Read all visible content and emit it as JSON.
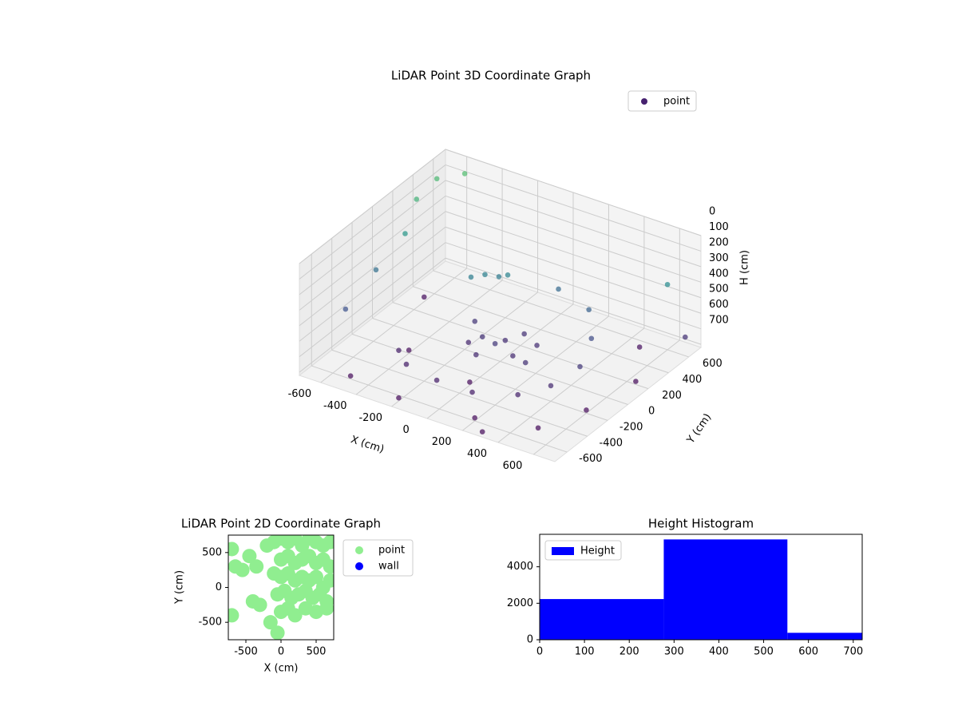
{
  "chart_data": [
    {
      "type": "scatter3d",
      "title": "LiDAR Point 3D Coordinate Graph",
      "xlabel": "X (cm)",
      "ylabel": "Y (cm)",
      "zlabel": "H (cm)",
      "xlim": [
        -720,
        720
      ],
      "ylim": [
        -720,
        720
      ],
      "zlim": [
        0,
        720
      ],
      "zinverted": true,
      "cmap": "viridis",
      "xticks": [
        -600,
        -400,
        -200,
        0,
        200,
        400,
        600
      ],
      "yticks": [
        -600,
        -400,
        -200,
        0,
        200,
        400,
        600
      ],
      "zticks": [
        0,
        100,
        200,
        300,
        400,
        500,
        600,
        700
      ],
      "series": [
        {
          "name": "point",
          "color": "#46216f",
          "x": [
            -100,
            0,
            100,
            -200,
            50,
            150,
            -50,
            200,
            -150,
            0,
            -250,
            -200,
            -150,
            -100,
            -400,
            -300,
            -100,
            100,
            300,
            400,
            450,
            400,
            300,
            100,
            -500,
            -200,
            200,
            500,
            600,
            650,
            500,
            -600,
            -400,
            0,
            300,
            700,
            -700,
            -700,
            -600,
            -650,
            -700,
            -700,
            600
          ],
          "y": [
            0,
            50,
            -50,
            100,
            150,
            100,
            -150,
            -100,
            -50,
            -50,
            150,
            200,
            250,
            250,
            -300,
            -400,
            -450,
            -450,
            -350,
            -200,
            0,
            200,
            350,
            400,
            -600,
            -650,
            -600,
            -500,
            -200,
            200,
            500,
            300,
            -200,
            -300,
            -700,
            600,
            400,
            600,
            700,
            200,
            0,
            -300,
            600
          ],
          "z": [
            600,
            610,
            620,
            590,
            600,
            610,
            620,
            600,
            630,
            580,
            350,
            340,
            360,
            330,
            650,
            650,
            650,
            650,
            640,
            620,
            580,
            520,
            450,
            420,
            700,
            700,
            700,
            700,
            700,
            700,
            690,
            690,
            700,
            700,
            700,
            600,
            150,
            120,
            100,
            250,
            400,
            500,
            300
          ]
        }
      ],
      "legend": "upper right"
    },
    {
      "type": "scatter",
      "title": "LiDAR Point 2D Coordinate Graph",
      "xlabel": "X (cm)",
      "ylabel": "Y (cm)",
      "xlim": [
        -750,
        750
      ],
      "ylim": [
        -750,
        750
      ],
      "xticks": [
        -500,
        0,
        500
      ],
      "yticks": [
        -500,
        0,
        500
      ],
      "series": [
        {
          "name": "point",
          "color": "#90ee90",
          "x": [
            -700,
            -650,
            -550,
            -450,
            -350,
            -700,
            -400,
            -300,
            -200,
            -100,
            0,
            100,
            200,
            300,
            400,
            500,
            600,
            700,
            0,
            100,
            200,
            300,
            400,
            500,
            600,
            700,
            -100,
            0,
            100,
            200,
            300,
            400,
            500,
            600,
            700,
            -50,
            50,
            150,
            250,
            350,
            450,
            550,
            650,
            0,
            100,
            200,
            350,
            500,
            650,
            -150,
            -50
          ],
          "y": [
            550,
            300,
            250,
            450,
            300,
            -400,
            -200,
            -250,
            600,
            650,
            700,
            650,
            700,
            600,
            700,
            650,
            600,
            650,
            400,
            450,
            350,
            400,
            450,
            350,
            400,
            300,
            200,
            150,
            200,
            100,
            150,
            100,
            150,
            0,
            100,
            -100,
            -50,
            -150,
            -100,
            -50,
            -150,
            -100,
            -200,
            -350,
            -300,
            -400,
            -300,
            -350,
            -300,
            -500,
            -650
          ]
        },
        {
          "name": "wall",
          "color": "#0000ff",
          "x": [],
          "y": []
        }
      ],
      "legend": "outside right"
    },
    {
      "type": "histogram",
      "title": "Height Histogram",
      "bins": [
        0,
        277,
        553,
        830
      ],
      "values": [
        2230,
        5500,
        380
      ],
      "xlim": [
        0,
        720
      ],
      "ylim": [
        0,
        5780
      ],
      "xticks": [
        0,
        100,
        200,
        300,
        400,
        500,
        600,
        700
      ],
      "yticks": [
        0,
        2000,
        4000
      ],
      "series_name": "Height",
      "color": "#0000ff",
      "legend": "upper left"
    }
  ]
}
